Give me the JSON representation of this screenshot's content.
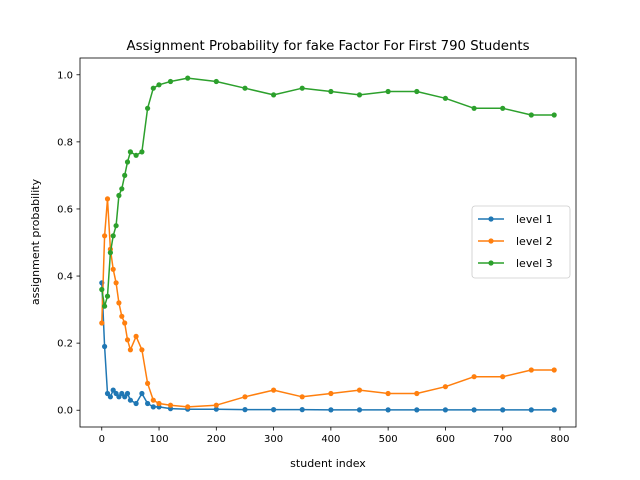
{
  "chart_data": {
    "type": "line",
    "title": "Assignment Probability for fake Factor For First 790 Students",
    "xlabel": "student index",
    "ylabel": "assignment probability",
    "xlim": [
      -38,
      828
    ],
    "ylim": [
      -0.05,
      1.05
    ],
    "xticks": [
      0,
      100,
      200,
      300,
      400,
      500,
      600,
      700,
      800
    ],
    "yticks": [
      0.0,
      0.2,
      0.4,
      0.6,
      0.8,
      1.0
    ],
    "ytick_labels": [
      "0.0",
      "0.2",
      "0.4",
      "0.6",
      "0.8",
      "1.0"
    ],
    "legend_position": "center-right",
    "grid": false,
    "x": [
      0,
      5,
      10,
      15,
      20,
      25,
      30,
      35,
      40,
      45,
      50,
      60,
      70,
      80,
      90,
      100,
      120,
      150,
      200,
      250,
      300,
      350,
      400,
      450,
      500,
      550,
      600,
      650,
      700,
      750,
      790
    ],
    "series": [
      {
        "name": "level 1",
        "color": "#1f77b4",
        "values": [
          0.38,
          0.19,
          0.05,
          0.04,
          0.06,
          0.05,
          0.04,
          0.05,
          0.04,
          0.05,
          0.03,
          0.02,
          0.05,
          0.02,
          0.01,
          0.01,
          0.005,
          0.003,
          0.003,
          0.002,
          0.002,
          0.002,
          0.001,
          0.001,
          0.001,
          0.001,
          0.001,
          0.001,
          0.001,
          0.001,
          0.001
        ]
      },
      {
        "name": "level 2",
        "color": "#ff7f0e",
        "values": [
          0.26,
          0.52,
          0.63,
          0.48,
          0.42,
          0.38,
          0.32,
          0.28,
          0.26,
          0.21,
          0.18,
          0.22,
          0.18,
          0.08,
          0.03,
          0.02,
          0.015,
          0.01,
          0.015,
          0.04,
          0.06,
          0.04,
          0.05,
          0.06,
          0.05,
          0.05,
          0.07,
          0.1,
          0.1,
          0.12,
          0.12
        ]
      },
      {
        "name": "level 3",
        "color": "#2ca02c",
        "values": [
          0.36,
          0.31,
          0.34,
          0.47,
          0.52,
          0.55,
          0.64,
          0.66,
          0.7,
          0.74,
          0.77,
          0.76,
          0.77,
          0.9,
          0.96,
          0.97,
          0.98,
          0.99,
          0.98,
          0.96,
          0.94,
          0.96,
          0.95,
          0.94,
          0.95,
          0.95,
          0.93,
          0.9,
          0.9,
          0.88,
          0.88
        ]
      }
    ]
  }
}
